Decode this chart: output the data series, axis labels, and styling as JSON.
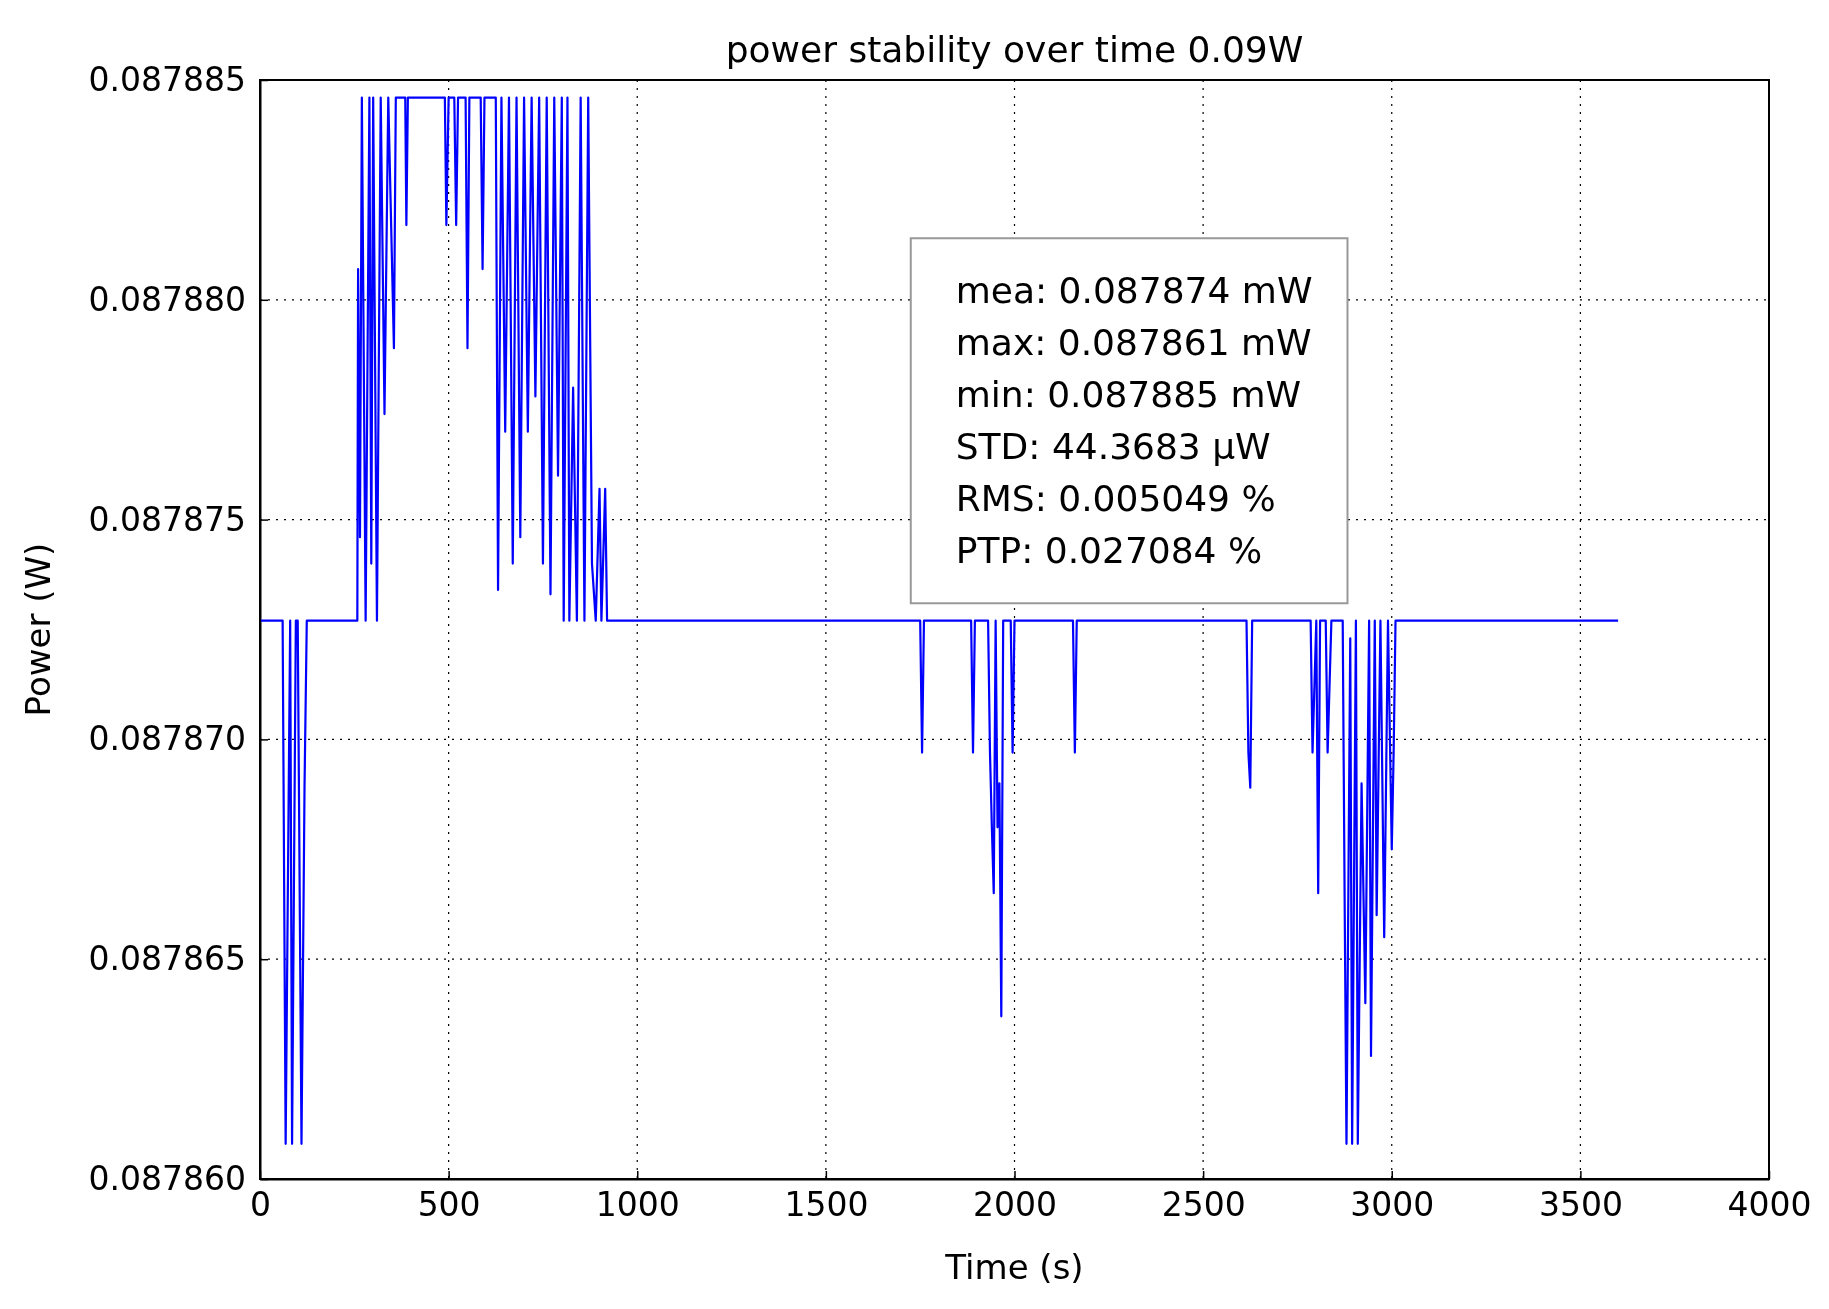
{
  "chart_data": {
    "type": "line",
    "title": "power stability over time 0.09W",
    "xlabel": "Time (s)",
    "ylabel": "Power (W)",
    "xlim": [
      0,
      4000
    ],
    "xticks": [
      0,
      500,
      1000,
      1500,
      2000,
      2500,
      3000,
      3500,
      4000
    ],
    "ylim": [
      0.08786,
      0.087885
    ],
    "yticks": [
      {
        "value": 0.08786,
        "label": "0.087860"
      },
      0.087865,
      {
        "value": 0.08787,
        "label": "0.087870"
      },
      0.087875,
      {
        "value": 0.08788,
        "label": "0.087880"
      },
      0.087885
    ],
    "grid": true,
    "line_style": "solid",
    "annotations": [
      "mea: 0.087874 mW",
      "max: 0.087861 mW",
      "min: 0.087885 mW",
      "STD: 44.3683 μW",
      "RMS: 0.005049 %",
      "PTP: 0.027084 %"
    ],
    "series": [
      {
        "color": "#0000ff",
        "x": [
          0,
          60,
          64,
          68,
          80,
          85,
          95,
          100,
          110,
          118,
          124,
          258,
          260,
          265,
          270,
          280,
          290,
          295,
          300,
          310,
          320,
          330,
          340,
          355,
          360,
          385,
          388,
          392,
          490,
          494,
          500,
          515,
          520,
          525,
          545,
          550,
          555,
          585,
          590,
          595,
          625,
          631,
          640,
          650,
          660,
          670,
          680,
          690,
          700,
          710,
          720,
          730,
          740,
          750,
          760,
          770,
          780,
          790,
          800,
          805,
          815,
          820,
          830,
          840,
          850,
          860,
          870,
          880,
          890,
          900,
          905,
          915,
          920,
          1750,
          1755,
          1760,
          1885,
          1890,
          1895,
          1930,
          1935,
          1940,
          1945,
          1950,
          1955,
          1960,
          1965,
          1970,
          1990,
          1995,
          2000,
          2155,
          2160,
          2165,
          2615,
          2620,
          2625,
          2630,
          2785,
          2790,
          2800,
          2805,
          2810,
          2825,
          2830,
          2840,
          2870,
          2875,
          2880,
          2890,
          2895,
          2905,
          2910,
          2920,
          2930,
          2940,
          2945,
          2955,
          2960,
          2970,
          2980,
          2990,
          3000,
          3005,
          3010,
          3600
        ],
        "values": [
          0.0878727,
          0.0878727,
          0.0878667,
          0.0878608,
          0.0878727,
          0.0878608,
          0.0878727,
          0.0878727,
          0.0878608,
          0.0878689,
          0.0878727,
          0.0878727,
          0.0878807,
          0.0878746,
          0.0878846,
          0.0878727,
          0.0878846,
          0.087874,
          0.0878846,
          0.0878727,
          0.0878846,
          0.0878774,
          0.0878846,
          0.0878789,
          0.0878846,
          0.0878846,
          0.0878817,
          0.0878846,
          0.0878846,
          0.0878817,
          0.0878846,
          0.0878846,
          0.0878817,
          0.0878846,
          0.0878846,
          0.0878789,
          0.0878846,
          0.0878846,
          0.0878807,
          0.0878846,
          0.0878846,
          0.0878734,
          0.0878846,
          0.087877,
          0.0878846,
          0.087874,
          0.0878846,
          0.0878746,
          0.0878846,
          0.087877,
          0.0878846,
          0.0878778,
          0.0878846,
          0.087874,
          0.0878846,
          0.0878733,
          0.0878846,
          0.087876,
          0.0878846,
          0.0878727,
          0.0878846,
          0.0878727,
          0.087878,
          0.0878727,
          0.0878846,
          0.0878727,
          0.0878846,
          0.087874,
          0.0878727,
          0.0878757,
          0.0878727,
          0.0878757,
          0.0878727,
          0.0878727,
          0.0878697,
          0.0878727,
          0.0878727,
          0.0878697,
          0.0878727,
          0.0878727,
          0.0878697,
          0.087868,
          0.0878665,
          0.0878727,
          0.087868,
          0.087869,
          0.0878637,
          0.0878727,
          0.0878727,
          0.0878697,
          0.0878727,
          0.0878727,
          0.0878697,
          0.0878727,
          0.0878727,
          0.0878697,
          0.0878689,
          0.0878727,
          0.0878727,
          0.0878697,
          0.0878727,
          0.0878665,
          0.0878727,
          0.0878727,
          0.0878697,
          0.0878727,
          0.0878727,
          0.0878665,
          0.0878608,
          0.0878723,
          0.0878608,
          0.0878727,
          0.0878608,
          0.087869,
          0.087864,
          0.0878727,
          0.0878628,
          0.0878727,
          0.087866,
          0.0878727,
          0.0878655,
          0.0878727,
          0.0878675,
          0.0878697,
          0.0878727,
          0.0878727
        ]
      }
    ]
  }
}
